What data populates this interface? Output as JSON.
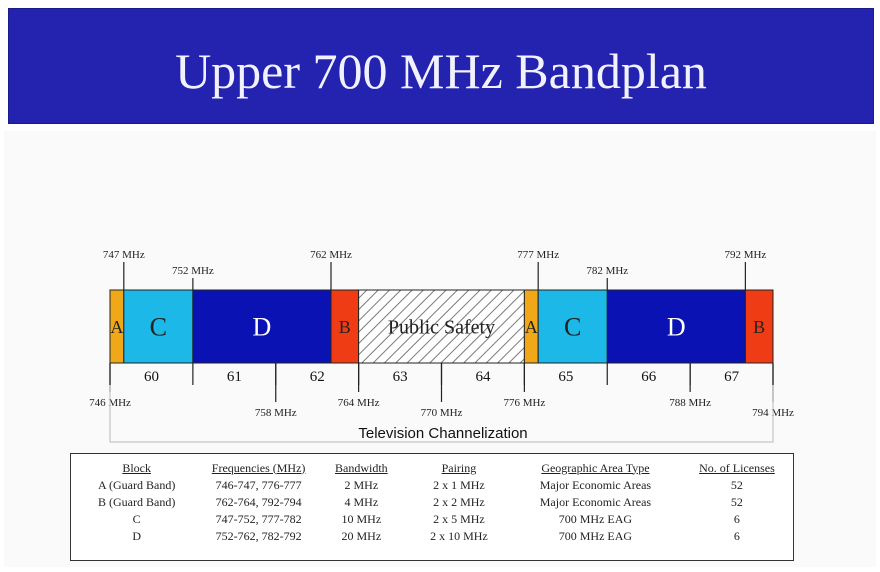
{
  "title": "Upper 700 MHz Bandplan",
  "colors": {
    "banner": "#2323b0",
    "guard_a": "#f0a818",
    "block_c": "#1cb8e8",
    "block_d": "#0a12b4",
    "guard_b": "#f03c14",
    "public_safety": "#ffffff"
  },
  "blocks": [
    {
      "label": "A",
      "start": 746,
      "end": 747,
      "color": "guard_a",
      "text_color": "#222222"
    },
    {
      "label": "C",
      "start": 747,
      "end": 752,
      "color": "block_c",
      "text_color": "#222222"
    },
    {
      "label": "D",
      "start": 752,
      "end": 762,
      "color": "block_d",
      "text_color": "#ffffff"
    },
    {
      "label": "B",
      "start": 762,
      "end": 764,
      "color": "guard_b",
      "text_color": "#222222"
    },
    {
      "label": "Public Safety",
      "start": 764,
      "end": 776,
      "color": "public_safety",
      "text_color": "#222222",
      "hatched": true
    },
    {
      "label": "A",
      "start": 776,
      "end": 777,
      "color": "guard_a",
      "text_color": "#222222"
    },
    {
      "label": "C",
      "start": 777,
      "end": 782,
      "color": "block_c",
      "text_color": "#222222"
    },
    {
      "label": "D",
      "start": 782,
      "end": 792,
      "color": "block_d",
      "text_color": "#ffffff"
    },
    {
      "label": "B",
      "start": 792,
      "end": 794,
      "color": "guard_b",
      "text_color": "#222222"
    }
  ],
  "top_markers": [
    {
      "freq": 747,
      "label": "747 MHz",
      "level": "high"
    },
    {
      "freq": 752,
      "label": "752 MHz",
      "level": "low"
    },
    {
      "freq": 762,
      "label": "762 MHz",
      "level": "high"
    },
    {
      "freq": 777,
      "label": "777 MHz",
      "level": "high"
    },
    {
      "freq": 782,
      "label": "782 MHz",
      "level": "low"
    },
    {
      "freq": 792,
      "label": "792 MHz",
      "level": "high"
    }
  ],
  "bottom_markers": [
    {
      "freq": 746,
      "label": "746 MHz",
      "level": "high"
    },
    {
      "freq": 758,
      "label": "758 MHz",
      "level": "low"
    },
    {
      "freq": 764,
      "label": "764 MHz",
      "level": "high"
    },
    {
      "freq": 770,
      "label": "770 MHz",
      "level": "low"
    },
    {
      "freq": 776,
      "label": "776 MHz",
      "level": "high"
    },
    {
      "freq": 788,
      "label": "788 MHz",
      "level": "high"
    },
    {
      "freq": 794,
      "label": "794 MHz",
      "level": "low"
    }
  ],
  "channel_dividers": [
    746,
    752,
    758,
    764,
    770,
    776,
    782,
    788,
    794
  ],
  "channels": [
    {
      "label": "60",
      "center": 749
    },
    {
      "label": "61",
      "center": 755
    },
    {
      "label": "62",
      "center": 761
    },
    {
      "label": "63",
      "center": 767
    },
    {
      "label": "64",
      "center": 773
    },
    {
      "label": "65",
      "center": 779
    },
    {
      "label": "66",
      "center": 785
    },
    {
      "label": "67",
      "center": 791
    }
  ],
  "channelization_label": "Television Channelization",
  "table": {
    "headers": [
      "Block",
      "Frequencies (MHz)",
      "Bandwidth",
      "Pairing",
      "Geographic Area Type",
      "No. of Licenses"
    ],
    "rows": [
      [
        "A (Guard Band)",
        "746-747, 776-777",
        "2 MHz",
        "2 x 1 MHz",
        "Major Economic Areas",
        "52"
      ],
      [
        "B (Guard Band)",
        "762-764, 792-794",
        "4 MHz",
        "2 x 2 MHz",
        "Major Economic Areas",
        "52"
      ],
      [
        "C",
        "747-752, 777-782",
        "10 MHz",
        "2 x 5 MHz",
        "700 MHz EAG",
        "6"
      ],
      [
        "D",
        "752-762, 782-792",
        "20 MHz",
        "2 x 10 MHz",
        "700 MHz EAG",
        "6"
      ]
    ]
  }
}
